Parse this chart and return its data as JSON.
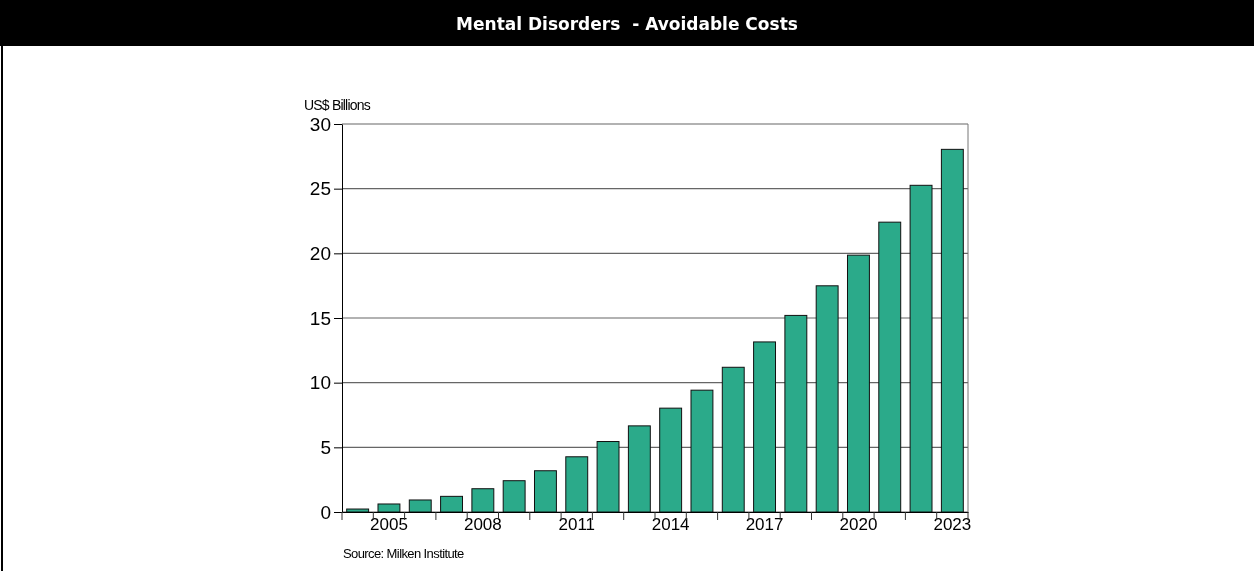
{
  "chart_data": {
    "type": "bar",
    "title": "Mental Disorders  - Avoidable Costs",
    "ylabel": "US$ Billions",
    "categories": [
      null,
      "2005",
      null,
      null,
      "2008",
      null,
      null,
      "2011",
      null,
      null,
      "2014",
      null,
      null,
      "2017",
      null,
      null,
      "2020",
      null,
      null,
      "2023"
    ],
    "values": [
      0.23,
      0.62,
      0.93,
      1.21,
      1.8,
      2.42,
      3.19,
      4.27,
      5.45,
      6.66,
      8.03,
      9.42,
      11.19,
      13.15,
      15.2,
      17.49,
      19.86,
      22.41,
      25.26,
      28.04
    ],
    "color": "#2baa8a",
    "ylim": [
      0,
      30
    ],
    "yticks": [
      0,
      5,
      10,
      15,
      20,
      25,
      30
    ],
    "grid": "y",
    "annotations": [
      "Source: Milken Institute"
    ]
  }
}
